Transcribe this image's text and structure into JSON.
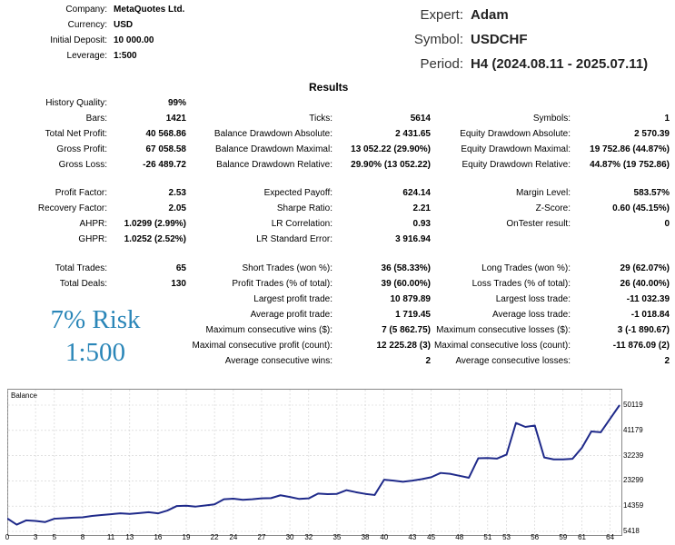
{
  "header": {
    "company_label": "Company:",
    "company_value": "MetaQuotes Ltd.",
    "currency_label": "Currency:",
    "currency_value": "USD",
    "deposit_label": "Initial Deposit:",
    "deposit_value": "10 000.00",
    "leverage_label": "Leverage:",
    "leverage_value": "1:500",
    "expert_label": "Expert:",
    "expert_value": "Adam",
    "symbol_label": "Symbol:",
    "symbol_value": "USDCHF",
    "period_label": "Period:",
    "period_value": "H4 (2024.08.11 - 2025.07.11)"
  },
  "results_title": "Results",
  "col1": [
    {
      "label": "History Quality:",
      "value": "99%"
    },
    {
      "label": "Bars:",
      "value": "1421"
    },
    {
      "label": "Total Net Profit:",
      "value": "40 568.86"
    },
    {
      "label": "Gross Profit:",
      "value": "67 058.58"
    },
    {
      "label": "Gross Loss:",
      "value": "-26 489.72"
    },
    {
      "label": "Profit Factor:",
      "value": "2.53"
    },
    {
      "label": "Recovery Factor:",
      "value": "2.05"
    },
    {
      "label": "AHPR:",
      "value": "1.0299 (2.99%)"
    },
    {
      "label": "GHPR:",
      "value": "1.0252 (2.52%)"
    },
    {
      "label": "Total Trades:",
      "value": "65"
    },
    {
      "label": "Total Deals:",
      "value": "130"
    }
  ],
  "col2": [
    {
      "label": "Ticks:",
      "value": "5614"
    },
    {
      "label": "Balance Drawdown Absolute:",
      "value": "2 431.65"
    },
    {
      "label": "Balance Drawdown Maximal:",
      "value": "13 052.22 (29.90%)"
    },
    {
      "label": "Balance Drawdown Relative:",
      "value": "29.90% (13 052.22)"
    },
    {
      "label": "Expected Payoff:",
      "value": "624.14"
    },
    {
      "label": "Sharpe Ratio:",
      "value": "2.21"
    },
    {
      "label": "LR Correlation:",
      "value": "0.93"
    },
    {
      "label": "LR Standard Error:",
      "value": "3 916.94"
    },
    {
      "label": "Short Trades (won %):",
      "value": "36 (58.33%)"
    },
    {
      "label": "Profit Trades (% of total):",
      "value": "39 (60.00%)"
    },
    {
      "label": "Largest profit trade:",
      "value": "10 879.89"
    },
    {
      "label": "Average profit trade:",
      "value": "1 719.45"
    },
    {
      "label": "Maximum consecutive wins ($):",
      "value": "7 (5 862.75)"
    },
    {
      "label": "Maximal consecutive profit (count):",
      "value": "12 225.28 (3)"
    },
    {
      "label": "Average consecutive wins:",
      "value": "2"
    }
  ],
  "col3": [
    {
      "label": "Symbols:",
      "value": "1"
    },
    {
      "label": "Equity Drawdown Absolute:",
      "value": "2 570.39"
    },
    {
      "label": "Equity Drawdown Maximal:",
      "value": "19 752.86 (44.87%)"
    },
    {
      "label": "Equity Drawdown Relative:",
      "value": "44.87% (19 752.86)"
    },
    {
      "label": "Margin Level:",
      "value": "583.57%"
    },
    {
      "label": "Z-Score:",
      "value": "0.60 (45.15%)"
    },
    {
      "label": "OnTester result:",
      "value": "0"
    },
    {
      "label": "Long Trades (won %):",
      "value": "29 (62.07%)"
    },
    {
      "label": "Loss Trades (% of total):",
      "value": "26 (40.00%)"
    },
    {
      "label": "Largest loss trade:",
      "value": "-11 032.39"
    },
    {
      "label": "Average loss trade:",
      "value": "-1 018.84"
    },
    {
      "label": "Maximum consecutive losses ($):",
      "value": "3 (-1 890.67)"
    },
    {
      "label": "Maximal consecutive loss (count):",
      "value": "-11 876.09 (2)"
    },
    {
      "label": "Average consecutive losses:",
      "value": "2"
    }
  ],
  "risk_text": {
    "line1": "7% Risk",
    "line2": "1:500"
  },
  "chart_data": {
    "type": "line",
    "title": "Balance",
    "line_color": "#1f2a8a",
    "x_ticks": [
      "0",
      "3",
      "5",
      "8",
      "11",
      "13",
      "16",
      "19",
      "22",
      "24",
      "27",
      "30",
      "32",
      "35",
      "38",
      "40",
      "43",
      "45",
      "48",
      "51",
      "53",
      "56",
      "59",
      "61",
      "64"
    ],
    "y_ticks": [
      "50119",
      "41179",
      "32239",
      "23299",
      "14359",
      "5418"
    ],
    "ylim": [
      5418,
      50119
    ],
    "xlim": [
      0,
      65
    ],
    "x": [
      0,
      1,
      2,
      3,
      4,
      5,
      6,
      7,
      8,
      9,
      10,
      11,
      12,
      13,
      14,
      15,
      16,
      17,
      18,
      19,
      20,
      21,
      22,
      23,
      24,
      25,
      26,
      27,
      28,
      29,
      30,
      31,
      32,
      33,
      34,
      35,
      36,
      37,
      38,
      39,
      40,
      41,
      42,
      43,
      44,
      45,
      46,
      47,
      48,
      49,
      50,
      51,
      52,
      53,
      54,
      55,
      56,
      57,
      58,
      59,
      60,
      61,
      62,
      63,
      64,
      65
    ],
    "y": [
      10000,
      7800,
      9300,
      9100,
      8700,
      9900,
      10100,
      10300,
      10400,
      10900,
      11200,
      11500,
      11800,
      11600,
      11900,
      12200,
      11800,
      12800,
      14400,
      14500,
      14200,
      14600,
      15000,
      16800,
      17000,
      16600,
      16800,
      17100,
      17200,
      18200,
      17600,
      16900,
      17100,
      18800,
      18600,
      18700,
      20000,
      19300,
      18700,
      18300,
      23700,
      23400,
      23000,
      23400,
      23900,
      24600,
      26100,
      25800,
      25100,
      24400,
      31300,
      31400,
      31200,
      32600,
      43800,
      42400,
      42900,
      31600,
      30900,
      30900,
      31100,
      35000,
      40800,
      40500,
      45300,
      50119
    ]
  }
}
